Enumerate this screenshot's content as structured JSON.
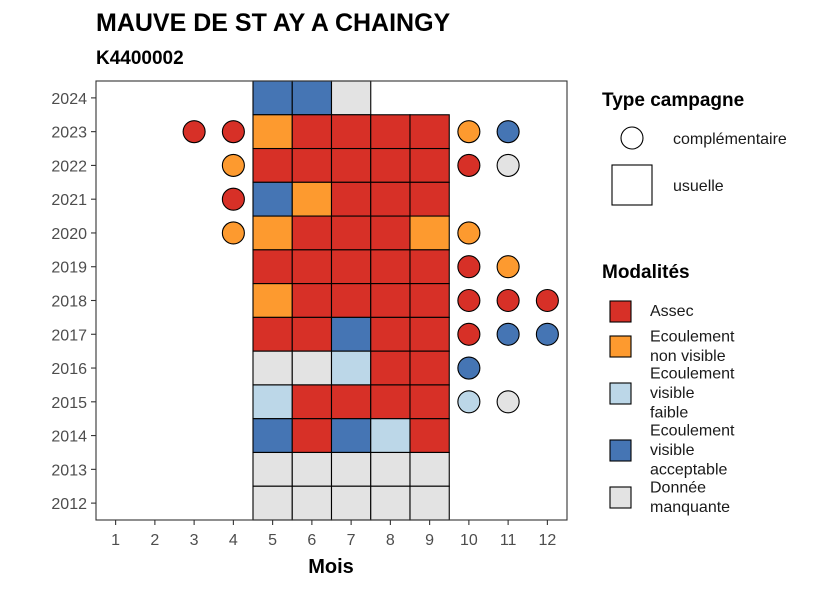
{
  "title": "MAUVE DE ST AY A CHAINGY",
  "subtitle": "K4400002",
  "chart_data": {
    "type": "heatmap",
    "xlabel": "Mois",
    "ylabel": "",
    "x_ticks": [
      "1",
      "2",
      "3",
      "4",
      "5",
      "6",
      "7",
      "8",
      "9",
      "10",
      "11",
      "12"
    ],
    "y_ticks": [
      "2012",
      "2013",
      "2014",
      "2015",
      "2016",
      "2017",
      "2018",
      "2019",
      "2020",
      "2021",
      "2022",
      "2023",
      "2024"
    ],
    "xlim": [
      0.5,
      12.5
    ],
    "ylim": [
      2011.5,
      2024.5
    ],
    "colors": {
      "Assec": "#d73027",
      "Ecoulement non visible": "#fd9a2f",
      "Ecoulement visible faible": "#bcd7e8",
      "Ecoulement visible acceptable": "#4575b4",
      "Donnée manquante": "#e3e3e3"
    },
    "legend_shape": {
      "title": "Type campagne",
      "entries": [
        {
          "label": "complémentaire",
          "shape": "circle"
        },
        {
          "label": "usuelle",
          "shape": "square"
        }
      ]
    },
    "legend_fill": {
      "title": "Modalités",
      "entries": [
        {
          "key": "Assec",
          "lines": [
            "Assec"
          ]
        },
        {
          "key": "Ecoulement non visible",
          "lines": [
            "Ecoulement",
            "non visible"
          ]
        },
        {
          "key": "Ecoulement visible faible",
          "lines": [
            "Ecoulement",
            "visible",
            "faible"
          ]
        },
        {
          "key": "Ecoulement visible acceptable",
          "lines": [
            "Ecoulement",
            "visible",
            "acceptable"
          ]
        },
        {
          "key": "Donnée manquante",
          "lines": [
            "Donnée",
            "manquante"
          ]
        }
      ]
    },
    "usuelle": [
      {
        "year": 2024,
        "months": {
          "5": "Ecoulement visible acceptable",
          "6": "Ecoulement visible acceptable",
          "7": "Donnée manquante"
        }
      },
      {
        "year": 2023,
        "months": {
          "5": "Ecoulement non visible",
          "6": "Assec",
          "7": "Assec",
          "8": "Assec",
          "9": "Assec"
        }
      },
      {
        "year": 2022,
        "months": {
          "5": "Assec",
          "6": "Assec",
          "7": "Assec",
          "8": "Assec",
          "9": "Assec"
        }
      },
      {
        "year": 2021,
        "months": {
          "5": "Ecoulement visible acceptable",
          "6": "Ecoulement non visible",
          "7": "Assec",
          "8": "Assec",
          "9": "Assec"
        }
      },
      {
        "year": 2020,
        "months": {
          "5": "Ecoulement non visible",
          "6": "Assec",
          "7": "Assec",
          "8": "Assec",
          "9": "Ecoulement non visible"
        }
      },
      {
        "year": 2019,
        "months": {
          "5": "Assec",
          "6": "Assec",
          "7": "Assec",
          "8": "Assec",
          "9": "Assec"
        }
      },
      {
        "year": 2018,
        "months": {
          "5": "Ecoulement non visible",
          "6": "Assec",
          "7": "Assec",
          "8": "Assec",
          "9": "Assec"
        }
      },
      {
        "year": 2017,
        "months": {
          "5": "Assec",
          "6": "Assec",
          "7": "Ecoulement visible acceptable",
          "8": "Assec",
          "9": "Assec"
        }
      },
      {
        "year": 2016,
        "months": {
          "5": "Donnée manquante",
          "6": "Donnée manquante",
          "7": "Ecoulement visible faible",
          "8": "Assec",
          "9": "Assec"
        }
      },
      {
        "year": 2015,
        "months": {
          "5": "Ecoulement visible faible",
          "6": "Assec",
          "7": "Assec",
          "8": "Assec",
          "9": "Assec"
        }
      },
      {
        "year": 2014,
        "months": {
          "5": "Ecoulement visible acceptable",
          "6": "Assec",
          "7": "Ecoulement visible acceptable",
          "8": "Ecoulement visible faible",
          "9": "Assec"
        }
      },
      {
        "year": 2013,
        "months": {
          "5": "Donnée manquante",
          "6": "Donnée manquante",
          "7": "Donnée manquante",
          "8": "Donnée manquante",
          "9": "Donnée manquante"
        }
      },
      {
        "year": 2012,
        "months": {
          "5": "Donnée manquante",
          "6": "Donnée manquante",
          "7": "Donnée manquante",
          "8": "Donnée manquante",
          "9": "Donnée manquante"
        }
      }
    ],
    "complementaire": [
      {
        "year": 2023,
        "month": 3,
        "value": "Assec"
      },
      {
        "year": 2023,
        "month": 4,
        "value": "Assec"
      },
      {
        "year": 2023,
        "month": 10,
        "value": "Ecoulement non visible"
      },
      {
        "year": 2023,
        "month": 11,
        "value": "Ecoulement visible acceptable"
      },
      {
        "year": 2022,
        "month": 4,
        "value": "Ecoulement non visible"
      },
      {
        "year": 2022,
        "month": 10,
        "value": "Assec"
      },
      {
        "year": 2022,
        "month": 11,
        "value": "Donnée manquante"
      },
      {
        "year": 2021,
        "month": 4,
        "value": "Assec"
      },
      {
        "year": 2020,
        "month": 4,
        "value": "Ecoulement non visible"
      },
      {
        "year": 2020,
        "month": 10,
        "value": "Ecoulement non visible"
      },
      {
        "year": 2019,
        "month": 10,
        "value": "Assec"
      },
      {
        "year": 2019,
        "month": 11,
        "value": "Ecoulement non visible"
      },
      {
        "year": 2018,
        "month": 10,
        "value": "Assec"
      },
      {
        "year": 2018,
        "month": 11,
        "value": "Assec"
      },
      {
        "year": 2018,
        "month": 12,
        "value": "Assec"
      },
      {
        "year": 2017,
        "month": 10,
        "value": "Assec"
      },
      {
        "year": 2017,
        "month": 11,
        "value": "Ecoulement visible acceptable"
      },
      {
        "year": 2017,
        "month": 12,
        "value": "Ecoulement visible acceptable"
      },
      {
        "year": 2016,
        "month": 10,
        "value": "Ecoulement visible acceptable"
      },
      {
        "year": 2015,
        "month": 10,
        "value": "Ecoulement visible faible"
      },
      {
        "year": 2015,
        "month": 11,
        "value": "Donnée manquante"
      }
    ]
  }
}
